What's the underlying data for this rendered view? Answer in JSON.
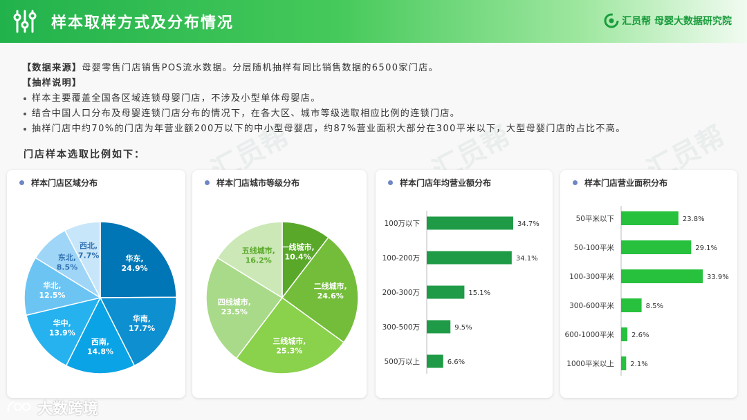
{
  "header": {
    "title": "样本取样方式及分布情况",
    "brand": "汇员帮 母婴大数据研究院"
  },
  "intro": {
    "source_label": "【数据来源】",
    "source_text": "母婴零售门店销售POS流水数据。分层随机抽样有同比销售数据的6500家门店。",
    "method_label": "【抽样说明】",
    "bullets": [
      "样本主要覆盖全国各区域连锁母婴门店，不涉及小型单体母婴店。",
      "结合中国人口分布及母婴连锁门店分布的情况下，在各大区、城市等级选取相应比例的连锁门店。",
      "抽样门店中约70%的门店为年营业额200万以下的中小型母婴店，约87%营业面积大部分在300平米以下，大型母婴门店的占比不高。"
    ],
    "subhead": "门店样本选取比例如下："
  },
  "footer": {
    "logo_text": "大数跨境"
  },
  "watermark": "汇员帮",
  "colors": {
    "accent": "#22b24c",
    "bar": "#1f9b47",
    "bar_bright": "#27c13d"
  },
  "chart_data": [
    {
      "type": "pie",
      "title": "样本门店区域分布",
      "categories": [
        "华东",
        "华南",
        "西南",
        "华中",
        "华北",
        "东北",
        "西北"
      ],
      "values": [
        24.9,
        17.7,
        14.8,
        13.9,
        12.5,
        8.5,
        7.7
      ],
      "labels": [
        "24.9%",
        "17.7%",
        "14.8%",
        "13.9%",
        "12.5%",
        "8.5%",
        "7.7%"
      ],
      "colors": [
        "#0076b6",
        "#0e8fd0",
        "#0aa3e6",
        "#26b2ef",
        "#6cc4f3",
        "#9fd6f7",
        "#c8e6fa"
      ]
    },
    {
      "type": "pie",
      "title": "样本门店城市等级分布",
      "categories": [
        "一线城市",
        "二线城市",
        "三线城市",
        "四线城市",
        "五线城市"
      ],
      "values": [
        10.4,
        24.6,
        25.3,
        23.5,
        16.2
      ],
      "labels": [
        "10.4%",
        "24.6%",
        "25.3%",
        "23.5%",
        "16.2%"
      ],
      "colors": [
        "#5aa82a",
        "#74bd3a",
        "#8ad14c",
        "#a9da89",
        "#cbe8b6"
      ]
    },
    {
      "type": "bar",
      "orientation": "horizontal",
      "title": "样本门店年均营业额分布",
      "categories": [
        "100万以下",
        "100-200万",
        "200-300万",
        "300-500万",
        "500万以上"
      ],
      "values": [
        34.7,
        34.1,
        15.1,
        9.5,
        6.6
      ],
      "labels": [
        "34.7%",
        "34.1%",
        "15.1%",
        "9.5%",
        "6.6%"
      ],
      "color": "#1f9b47"
    },
    {
      "type": "bar",
      "orientation": "horizontal",
      "title": "样本门店营业面积分布",
      "categories": [
        "50平米以下",
        "50-100平米",
        "100-300平米",
        "300-600平米",
        "600-1000平米",
        "1000平米以上"
      ],
      "values": [
        23.8,
        29.1,
        33.9,
        8.5,
        2.6,
        2.1
      ],
      "labels": [
        "23.8%",
        "29.1%",
        "33.9%",
        "8.5%",
        "2.6%",
        "2.1%"
      ],
      "color": "#27c13d"
    }
  ]
}
